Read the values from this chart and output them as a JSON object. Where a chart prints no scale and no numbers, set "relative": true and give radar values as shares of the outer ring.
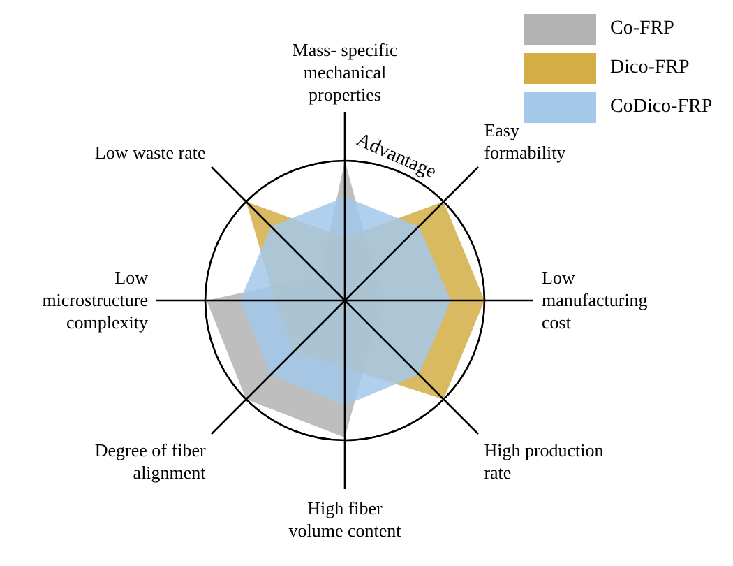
{
  "chart_data": {
    "type": "radar",
    "relative": true,
    "categories": [
      "Mass- specific mechanical properties",
      "Easy formability",
      "Low manufacturing cost",
      "High production rate",
      "High fiber volume content",
      "Degree of fiber alignment",
      "Low microstructure complexity",
      "Low waste rate"
    ],
    "series": [
      {
        "name": "Co-FRP",
        "color": "#b3b3b3",
        "values": [
          1.0,
          0.3,
          0.3,
          0.3,
          0.98,
          1.0,
          0.99,
          0.25
        ]
      },
      {
        "name": "Dico-FRP",
        "color": "#d4ae45",
        "values": [
          0.45,
          1.0,
          1.0,
          1.0,
          0.48,
          0.52,
          0.5,
          1.0
        ]
      },
      {
        "name": "CoDico-FRP",
        "color": "#a3c8ea",
        "values": [
          0.74,
          0.75,
          0.76,
          0.75,
          0.75,
          0.75,
          0.75,
          0.75
        ]
      }
    ],
    "annotations": [
      "Advantage"
    ],
    "legend": "top right",
    "grid": true
  }
}
